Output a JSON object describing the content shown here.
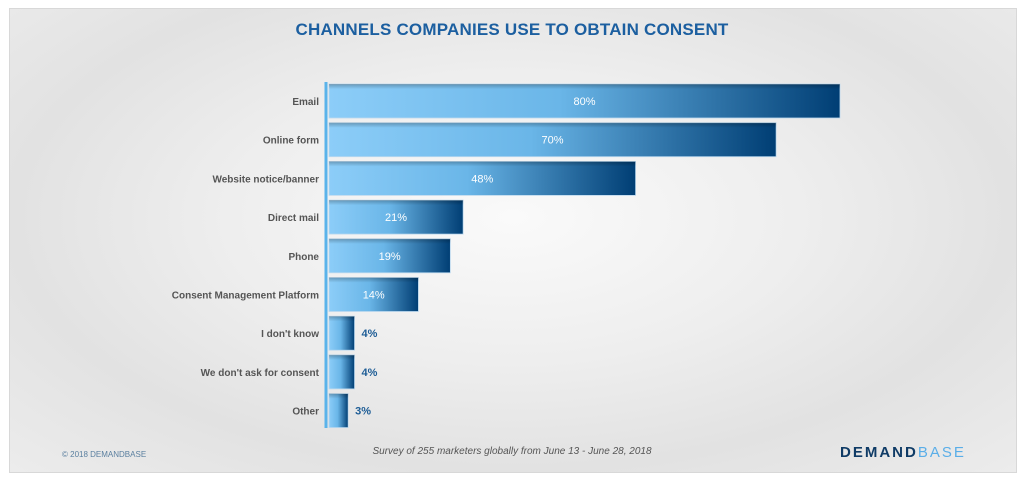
{
  "chart_data": {
    "type": "bar",
    "orientation": "horizontal",
    "title": "CHANNELS COMPANIES USE TO OBTAIN CONSENT",
    "categories": [
      "Email",
      "Online form",
      "Website notice/banner",
      "Direct mail",
      "Phone",
      "Consent Management Platform",
      "I don't know",
      "We don't ask for consent",
      "Other"
    ],
    "values": [
      80,
      70,
      48,
      21,
      19,
      14,
      4,
      4,
      3
    ],
    "value_labels": [
      "80%",
      "70%",
      "48%",
      "21%",
      "19%",
      "14%",
      "4%",
      "4%",
      "3%"
    ],
    "xlim": [
      0,
      80
    ],
    "colors": {
      "light": "#8ccdf8",
      "dark": "#003e74",
      "label_out": "#1e5d96",
      "axis": "#5ab3ea"
    }
  },
  "footer": {
    "copyright": "© 2018 DEMANDBASE",
    "note": "Survey of 255 marketers globally from June 13 - June 28, 2018",
    "logo_a": "DEMAND",
    "logo_b": "BASE"
  }
}
